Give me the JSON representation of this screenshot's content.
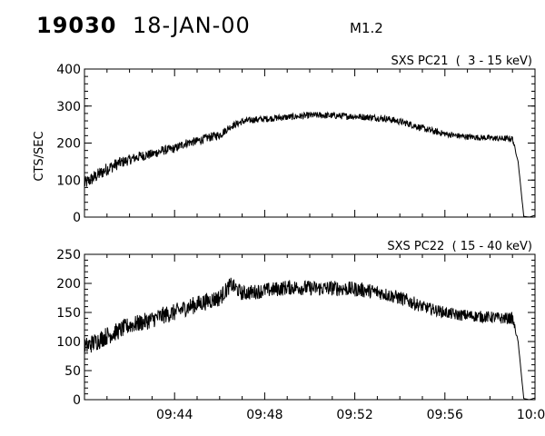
{
  "header": {
    "event_id": "19030",
    "date": "18-JAN-00",
    "flare_class": "M1.2"
  },
  "chart_data": [
    {
      "type": "line",
      "title": "SXS PC21  (  3 - 15 keV)",
      "ylabel": "CTS/SEC",
      "xlabel": "",
      "ylim": [
        0,
        400
      ],
      "yticks": [
        0,
        100,
        200,
        300,
        400
      ],
      "xlim": [
        "09:40:00",
        "10:00:00"
      ],
      "xticks": [
        "09:44",
        "09:48",
        "09:52",
        "09:56",
        "10:00"
      ],
      "show_xtick_labels": false,
      "grid": false,
      "series": [
        {
          "x": [
            "09:40:00",
            "09:40:30",
            "09:41:00",
            "09:41:30",
            "09:42:00",
            "09:42:30",
            "09:43:00",
            "09:43:30",
            "09:44:00",
            "09:44:30",
            "09:45:00",
            "09:45:30",
            "09:46:00",
            "09:46:30",
            "09:47:00",
            "09:47:30",
            "09:48:00",
            "09:48:30",
            "09:49:00",
            "09:49:30",
            "09:50:00",
            "09:50:30",
            "09:51:00",
            "09:51:30",
            "09:52:00",
            "09:52:30",
            "09:53:00",
            "09:53:30",
            "09:54:00",
            "09:54:30",
            "09:55:00",
            "09:55:30",
            "09:56:00",
            "09:56:30",
            "09:57:00",
            "09:57:30",
            "09:58:00",
            "09:58:30",
            "09:59:00",
            "09:59:15",
            "09:59:30",
            "09:59:45",
            "10:00:00"
          ],
          "values": [
            90,
            110,
            130,
            145,
            155,
            165,
            170,
            180,
            185,
            200,
            205,
            215,
            222,
            245,
            258,
            263,
            265,
            268,
            270,
            272,
            275,
            275,
            274,
            273,
            272,
            270,
            268,
            265,
            258,
            250,
            240,
            232,
            225,
            220,
            217,
            215,
            214,
            212,
            212,
            150,
            2,
            0,
            5
          ],
          "noise": [
            18,
            18,
            18,
            16,
            14,
            14,
            13,
            13,
            12,
            12,
            12,
            12,
            12,
            9,
            9,
            9,
            9,
            9,
            9,
            9,
            9,
            9,
            9,
            9,
            9,
            9,
            9,
            9,
            9,
            9,
            9,
            9,
            8,
            8,
            8,
            8,
            8,
            8,
            8,
            0,
            0,
            0,
            0
          ]
        }
      ]
    },
    {
      "type": "line",
      "title": "SXS PC22  ( 15 - 40 keV)",
      "ylabel": "",
      "xlabel": "",
      "ylim": [
        0,
        250
      ],
      "yticks": [
        0,
        50,
        100,
        150,
        200,
        250
      ],
      "xlim": [
        "09:40:00",
        "10:00:00"
      ],
      "xticks": [
        "09:44",
        "09:48",
        "09:52",
        "09:56",
        "10:00"
      ],
      "show_xtick_labels": true,
      "grid": false,
      "series": [
        {
          "x": [
            "09:40:00",
            "09:40:30",
            "09:41:00",
            "09:41:30",
            "09:42:00",
            "09:42:30",
            "09:43:00",
            "09:43:30",
            "09:44:00",
            "09:44:30",
            "09:45:00",
            "09:45:30",
            "09:46:00",
            "09:46:30",
            "09:47:00",
            "09:47:30",
            "09:48:00",
            "09:48:30",
            "09:49:00",
            "09:49:30",
            "09:50:00",
            "09:50:30",
            "09:51:00",
            "09:51:30",
            "09:52:00",
            "09:52:30",
            "09:53:00",
            "09:53:30",
            "09:54:00",
            "09:54:30",
            "09:55:00",
            "09:55:30",
            "09:56:00",
            "09:56:30",
            "09:57:00",
            "09:57:30",
            "09:58:00",
            "09:58:30",
            "09:59:00",
            "09:59:15",
            "09:59:30",
            "09:59:45",
            "10:00:00"
          ],
          "values": [
            90,
            100,
            110,
            118,
            128,
            132,
            138,
            145,
            150,
            158,
            164,
            170,
            175,
            198,
            183,
            185,
            188,
            190,
            193,
            193,
            192,
            191,
            192,
            191,
            190,
            188,
            185,
            180,
            175,
            168,
            160,
            155,
            150,
            146,
            145,
            143,
            142,
            140,
            140,
            100,
            2,
            0,
            3
          ],
          "noise": [
            16,
            16,
            16,
            15,
            15,
            15,
            15,
            15,
            15,
            15,
            15,
            15,
            15,
            13,
            13,
            13,
            13,
            13,
            13,
            13,
            13,
            13,
            13,
            13,
            13,
            13,
            12,
            12,
            12,
            12,
            10,
            10,
            10,
            10,
            10,
            10,
            10,
            10,
            10,
            0,
            0,
            0,
            0
          ]
        }
      ]
    }
  ]
}
